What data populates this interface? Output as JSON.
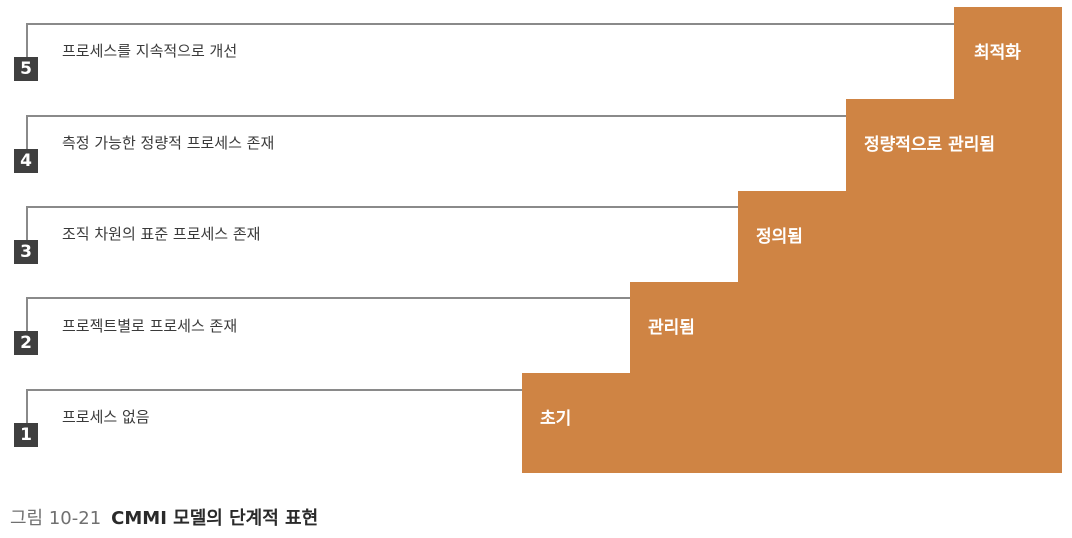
{
  "colors": {
    "step": "#cf8444",
    "line": "#8a8a8a",
    "number_box": "#3f3f3f"
  },
  "levels": [
    {
      "number": "1",
      "description": "프로세스 없음",
      "label": "초기"
    },
    {
      "number": "2",
      "description": "프로젝트별로 프로세스 존재",
      "label": "관리됨"
    },
    {
      "number": "3",
      "description": "조직 차원의 표준 프로세스 존재",
      "label": "정의됨"
    },
    {
      "number": "4",
      "description": "측정 가능한 정량적 프로세스 존재",
      "label": "정량적으로 관리됨"
    },
    {
      "number": "5",
      "description": "프로세스를 지속적으로 개선",
      "label": "최적화"
    }
  ],
  "caption": {
    "figure": "그림 10-21",
    "title": "CMMI 모델의 단계적 표현"
  }
}
